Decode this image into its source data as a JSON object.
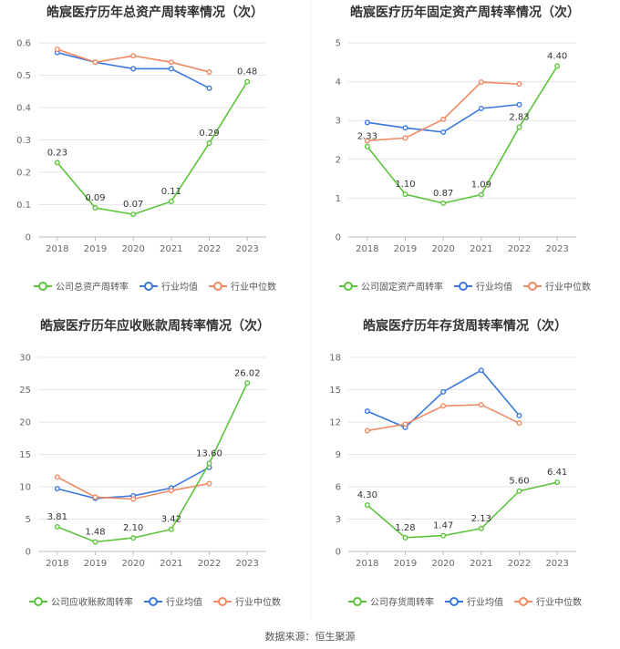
{
  "colors": {
    "company": "#5cc43c",
    "avg": "#3a78e0",
    "median": "#f08a62",
    "grid": "#e6e6e6",
    "axis": "#bbbbbb"
  },
  "source": "数据来源：恒生聚源",
  "chart_data": [
    {
      "type": "line",
      "title": "皓宸医疗历年总资产周转率情况（次）",
      "categories": [
        "2018",
        "2019",
        "2020",
        "2021",
        "2022",
        "2023"
      ],
      "ylim": [
        0,
        0.6
      ],
      "yticks": [
        "0",
        "0.1",
        "0.2",
        "0.3",
        "0.4",
        "0.5",
        "0.6"
      ],
      "legend_position": "bottom",
      "series": [
        {
          "name": "公司总资产周转率",
          "color_key": "company",
          "values": [
            0.23,
            0.09,
            0.07,
            0.11,
            0.29,
            0.48
          ],
          "labels": [
            "0.23",
            "0.09",
            "0.07",
            "0.11",
            "0.29",
            "0.48"
          ]
        },
        {
          "name": "行业均值",
          "color_key": "avg",
          "values": [
            0.57,
            0.54,
            0.52,
            0.52,
            0.46,
            null
          ]
        },
        {
          "name": "行业中位数",
          "color_key": "median",
          "values": [
            0.58,
            0.54,
            0.56,
            0.54,
            0.51,
            null
          ]
        }
      ]
    },
    {
      "type": "line",
      "title": "皓宸医疗历年固定资产周转率情况（次）",
      "categories": [
        "2018",
        "2019",
        "2020",
        "2021",
        "2022",
        "2023"
      ],
      "ylim": [
        0,
        5
      ],
      "yticks": [
        "0",
        "1",
        "2",
        "3",
        "4",
        "5"
      ],
      "legend_position": "bottom",
      "series": [
        {
          "name": "公司固定资产周转率",
          "color_key": "company",
          "values": [
            2.33,
            1.1,
            0.87,
            1.09,
            2.83,
            4.4
          ],
          "labels": [
            "2.33",
            "1.10",
            "0.87",
            "1.09",
            "2.83",
            "4.40"
          ]
        },
        {
          "name": "行业均值",
          "color_key": "avg",
          "values": [
            2.95,
            2.81,
            2.7,
            3.31,
            3.41,
            null
          ]
        },
        {
          "name": "行业中位数",
          "color_key": "median",
          "values": [
            2.48,
            2.55,
            3.03,
            3.99,
            3.94,
            null
          ]
        }
      ]
    },
    {
      "type": "line",
      "title": "皓宸医疗历年应收账款周转率情况（次）",
      "categories": [
        "2018",
        "2019",
        "2020",
        "2021",
        "2022",
        "2023"
      ],
      "ylim": [
        0,
        30
      ],
      "yticks": [
        "0",
        "5",
        "10",
        "15",
        "20",
        "25",
        "30"
      ],
      "legend_position": "bottom",
      "series": [
        {
          "name": "公司应收账款周转率",
          "color_key": "company",
          "values": [
            3.81,
            1.48,
            2.1,
            3.42,
            13.6,
            26.02
          ],
          "labels": [
            "3.81",
            "1.48",
            "2.10",
            "3.42",
            "13.60",
            "26.02"
          ]
        },
        {
          "name": "行业均值",
          "color_key": "avg",
          "values": [
            9.7,
            8.2,
            8.6,
            9.8,
            13.0,
            null
          ]
        },
        {
          "name": "行业中位数",
          "color_key": "median",
          "values": [
            11.5,
            8.4,
            8.1,
            9.4,
            10.5,
            null
          ]
        }
      ]
    },
    {
      "type": "line",
      "title": "皓宸医疗历年存货周转率情况（次）",
      "categories": [
        "2018",
        "2019",
        "2020",
        "2021",
        "2022",
        "2023"
      ],
      "ylim": [
        0,
        18
      ],
      "yticks": [
        "0",
        "3",
        "6",
        "9",
        "12",
        "15",
        "18"
      ],
      "legend_position": "bottom",
      "series": [
        {
          "name": "公司存货周转率",
          "color_key": "company",
          "values": [
            4.3,
            1.28,
            1.47,
            2.13,
            5.6,
            6.41
          ],
          "labels": [
            "4.30",
            "1.28",
            "1.47",
            "2.13",
            "5.60",
            "6.41"
          ]
        },
        {
          "name": "行业均值",
          "color_key": "avg",
          "values": [
            13.0,
            11.5,
            14.8,
            16.8,
            12.6,
            null
          ]
        },
        {
          "name": "行业中位数",
          "color_key": "median",
          "values": [
            11.2,
            11.8,
            13.5,
            13.6,
            11.9,
            null
          ]
        }
      ]
    }
  ]
}
